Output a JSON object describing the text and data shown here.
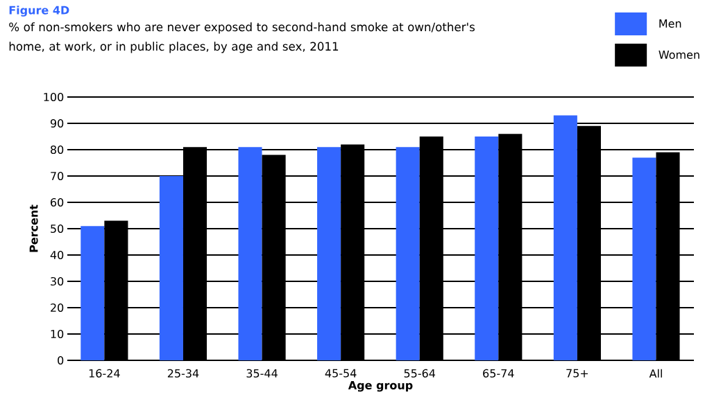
{
  "chart_data": {
    "type": "bar",
    "title": "Figure 4D",
    "subtitle": "% of non-smokers who are never exposed to second-hand smoke at own/other's home, at work, or in public places, by age and sex, 2011",
    "xlabel": "Age group",
    "ylabel": "Percent",
    "categories": [
      "16-24",
      "25-34",
      "35-44",
      "45-54",
      "55-64",
      "65-74",
      "75+",
      "All"
    ],
    "series": [
      {
        "name": "Men",
        "color": "#3366ff",
        "values": [
          51,
          70,
          81,
          81,
          81,
          85,
          93,
          77
        ]
      },
      {
        "name": "Women",
        "color": "#000000",
        "values": [
          53,
          81,
          78,
          82,
          85,
          86,
          89,
          79
        ]
      }
    ],
    "ylim": [
      0,
      100
    ],
    "yticks": [
      0,
      10,
      20,
      30,
      40,
      50,
      60,
      70,
      80,
      90,
      100
    ],
    "grid": "y",
    "legend": "top right"
  }
}
